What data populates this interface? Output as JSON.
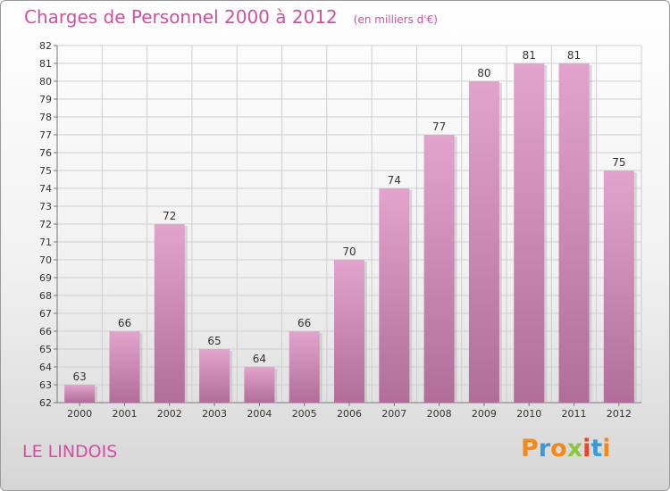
{
  "header": {
    "title": "Charges de Personnel 2000 à 2012",
    "unit": "(en milliers d'€)"
  },
  "footer": {
    "commune": "LE LINDOIS",
    "brand": "Proxiti"
  },
  "colors": {
    "title": "#d24fa0",
    "bar_top": "#e2a4cc",
    "bar_bottom": "#b06e99",
    "grid": "#cfcfcf",
    "brand_letters": [
      "#f08a1c",
      "#3a9bd8",
      "#f08a1c",
      "#8cc63f",
      "#e8452c",
      "#3a9bd8",
      "#f08a1c"
    ]
  },
  "chart_data": {
    "type": "bar",
    "categories": [
      "2000",
      "2001",
      "2002",
      "2003",
      "2004",
      "2005",
      "2006",
      "2007",
      "2008",
      "2009",
      "2010",
      "2011",
      "2012"
    ],
    "values": [
      63,
      66,
      72,
      65,
      64,
      66,
      70,
      74,
      77,
      80,
      81,
      81,
      75
    ],
    "title": "Charges de Personnel 2000 à 2012",
    "ylabel": "",
    "xlabel": "",
    "ylim": [
      62,
      82
    ],
    "yticks": [
      62,
      63,
      64,
      65,
      66,
      67,
      68,
      69,
      70,
      71,
      72,
      73,
      74,
      75,
      76,
      77,
      78,
      79,
      80,
      81,
      82
    ],
    "grid": true,
    "legend": "none"
  }
}
